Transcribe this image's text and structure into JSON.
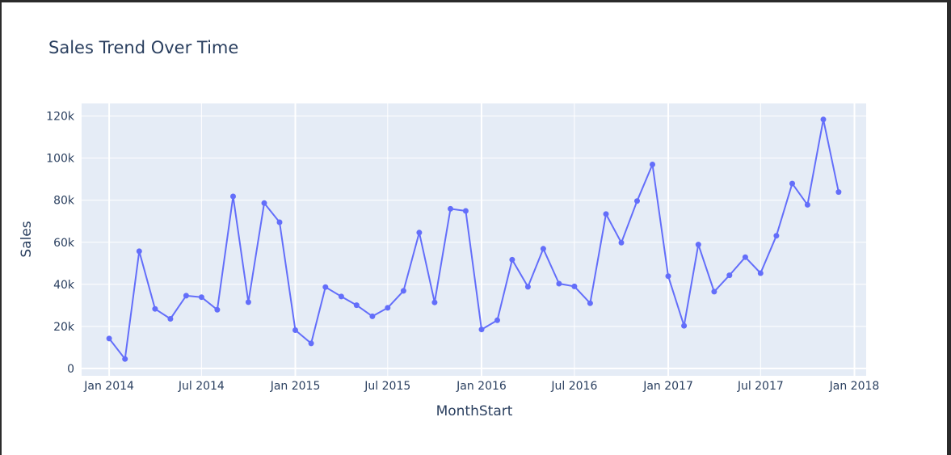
{
  "chart_data": {
    "type": "line",
    "title": "Sales Trend Over Time",
    "xlabel": "MonthStart",
    "ylabel": "Sales",
    "x_range": [
      "2013-11-08",
      "2018-01-24"
    ],
    "ylim": [
      -3500,
      126000
    ],
    "grid": true,
    "legend": "none",
    "y_ticks": [
      0,
      20000,
      40000,
      60000,
      80000,
      100000,
      120000
    ],
    "y_tick_labels": [
      "0",
      "20k",
      "40k",
      "60k",
      "80k",
      "100k",
      "120k"
    ],
    "x_ticks": [
      "2014-01-01",
      "2014-07-01",
      "2015-01-01",
      "2015-07-01",
      "2016-01-01",
      "2016-07-01",
      "2017-01-01",
      "2017-07-01",
      "2018-01-01"
    ],
    "x_tick_labels": [
      "Jan 2014",
      "Jul 2014",
      "Jan 2015",
      "Jul 2015",
      "Jan 2016",
      "Jul 2016",
      "Jan 2017",
      "Jul 2017",
      "Jan 2018"
    ],
    "series": [
      {
        "color": "#636efa",
        "x": [
          "2014-01-01",
          "2014-02-01",
          "2014-03-01",
          "2014-04-01",
          "2014-05-01",
          "2014-06-01",
          "2014-07-01",
          "2014-08-01",
          "2014-09-01",
          "2014-10-01",
          "2014-11-01",
          "2014-12-01",
          "2015-01-01",
          "2015-02-01",
          "2015-03-01",
          "2015-04-01",
          "2015-05-01",
          "2015-06-01",
          "2015-07-01",
          "2015-08-01",
          "2015-09-01",
          "2015-10-01",
          "2015-11-01",
          "2015-12-01",
          "2016-01-01",
          "2016-02-01",
          "2016-03-01",
          "2016-04-01",
          "2016-05-01",
          "2016-06-01",
          "2016-07-01",
          "2016-08-01",
          "2016-09-01",
          "2016-10-01",
          "2016-11-01",
          "2016-12-01",
          "2017-01-01",
          "2017-02-01",
          "2017-03-01",
          "2017-04-01",
          "2017-05-01",
          "2017-06-01",
          "2017-07-01",
          "2017-08-01",
          "2017-09-01",
          "2017-10-01",
          "2017-11-01",
          "2017-12-01"
        ],
        "values": [
          14200,
          4500,
          55700,
          28300,
          23600,
          34600,
          33900,
          27900,
          81800,
          31500,
          78600,
          69500,
          18200,
          11900,
          38700,
          34200,
          30100,
          24800,
          28800,
          36900,
          64600,
          31400,
          75900,
          74900,
          18500,
          22900,
          51700,
          38800,
          56900,
          40300,
          39000,
          31000,
          73400,
          59800,
          79600,
          97000,
          43900,
          20300,
          58900,
          36500,
          44300,
          52900,
          45300,
          63100,
          87900,
          77800,
          118400,
          83900
        ]
      }
    ]
  }
}
